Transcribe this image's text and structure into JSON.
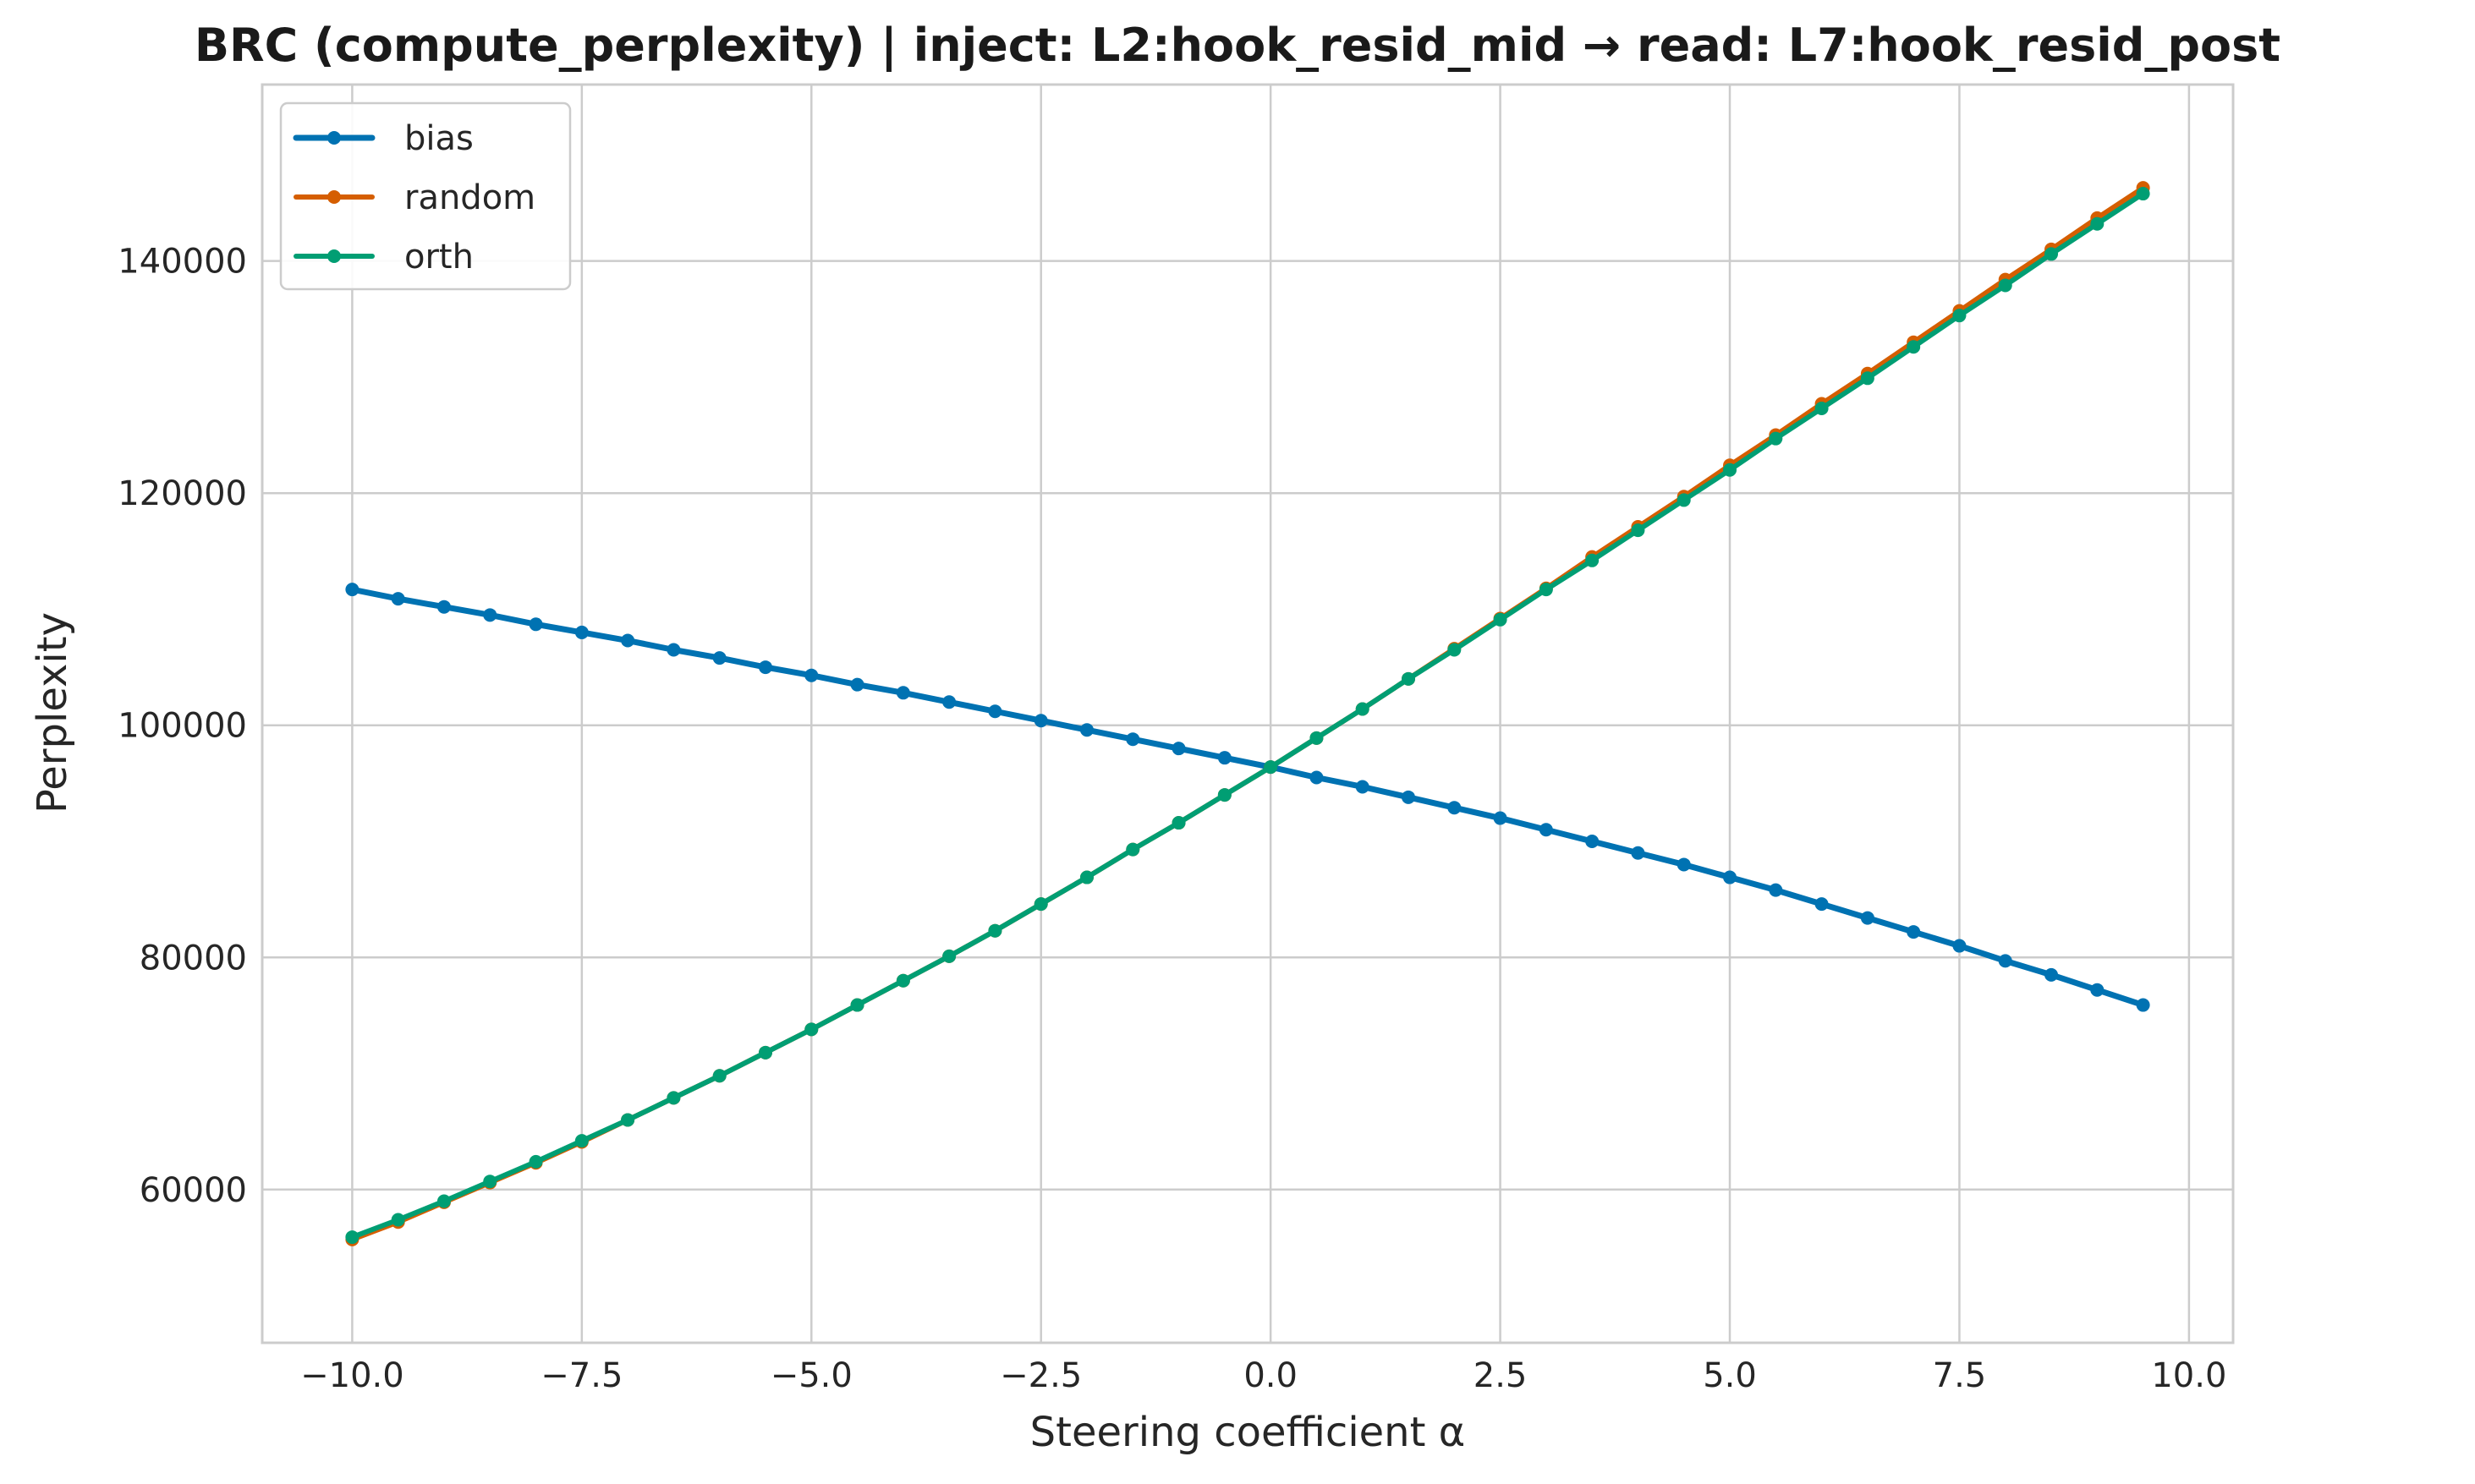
{
  "chart_data": {
    "type": "line",
    "title": "BRC (compute_perplexity) | inject: L2:hook_resid_mid → read: L7:hook_resid_post",
    "xlabel": "Steering coefficient α",
    "ylabel": "Perplexity",
    "xlim": [
      -10.98,
      10.48
    ],
    "ylim": [
      46800,
      155200
    ],
    "xticks": [
      -10.0,
      -7.5,
      -5.0,
      -2.5,
      0.0,
      2.5,
      5.0,
      7.5,
      10.0
    ],
    "xtick_labels": [
      "−10.0",
      "−7.5",
      "−5.0",
      "−2.5",
      "0.0",
      "2.5",
      "5.0",
      "7.5",
      "10.0"
    ],
    "yticks": [
      60000,
      80000,
      100000,
      120000,
      140000
    ],
    "ytick_labels": [
      "60000",
      "80000",
      "100000",
      "120000",
      "140000"
    ],
    "grid": true,
    "legend_position": "top-left",
    "x": [
      -10.0,
      -9.5,
      -9.0,
      -8.5,
      -8.0,
      -7.5,
      -7.0,
      -6.5,
      -6.0,
      -5.5,
      -5.0,
      -4.5,
      -4.0,
      -3.5,
      -3.0,
      -2.5,
      -2.0,
      -1.5,
      -1.0,
      -0.5,
      0.0,
      0.5,
      1.0,
      1.5,
      2.0,
      2.5,
      3.0,
      3.5,
      4.0,
      4.5,
      5.0,
      5.5,
      6.0,
      6.5,
      7.0,
      7.5,
      8.0,
      8.5,
      9.0,
      9.5
    ],
    "series": [
      {
        "name": "bias",
        "color": "#0072B2",
        "values": [
          111700,
          110900,
          110200,
          109500,
          108700,
          108000,
          107300,
          106500,
          105800,
          105000,
          104300,
          103500,
          102800,
          102000,
          101200,
          100400,
          99600,
          98800,
          98000,
          97200,
          96400,
          95500,
          94700,
          93800,
          92900,
          92000,
          91000,
          90000,
          89000,
          88000,
          86900,
          85800,
          84600,
          83400,
          82200,
          81000,
          79700,
          78500,
          77200,
          75900
        ]
      },
      {
        "name": "random",
        "color": "#D55E00",
        "values": [
          55700,
          57200,
          58900,
          60600,
          62300,
          64100,
          66000,
          67900,
          69800,
          71800,
          73800,
          75900,
          78000,
          80100,
          82300,
          84600,
          86900,
          89300,
          91600,
          94000,
          96400,
          98900,
          101400,
          104000,
          106600,
          109200,
          111800,
          114500,
          117100,
          119700,
          122400,
          125000,
          127700,
          130300,
          133000,
          135700,
          138400,
          141000,
          143700,
          146300
        ]
      },
      {
        "name": "orth",
        "color": "#009E73",
        "values": [
          55900,
          57400,
          59000,
          60700,
          62400,
          64200,
          66000,
          67900,
          69800,
          71800,
          73800,
          75900,
          78000,
          80100,
          82300,
          84600,
          86900,
          89300,
          91600,
          94000,
          96400,
          98900,
          101400,
          104000,
          106500,
          109100,
          111700,
          114200,
          116800,
          119400,
          122000,
          124700,
          127300,
          129900,
          132600,
          135300,
          137900,
          140600,
          143200,
          145800
        ]
      }
    ]
  }
}
